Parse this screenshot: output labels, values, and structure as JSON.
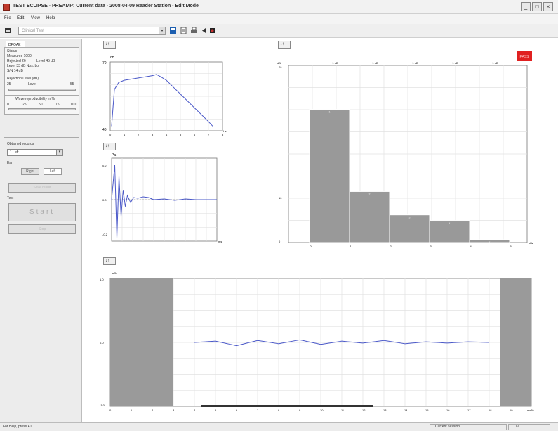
{
  "window": {
    "title": "TEST ECLIPSE - PREAMP: Current data - 2008-04-09 Reader Station - Edit Mode",
    "minimize": "_",
    "maximize": "□",
    "close": "×"
  },
  "menu": [
    "File",
    "Edit",
    "View",
    "Help"
  ],
  "toolbar": {
    "combo_value": "Clinical Test"
  },
  "left_panel": {
    "tab_label": "DPOAE",
    "status_label": "Status",
    "measured": "Measured 1000",
    "rejected": "Rejected 26",
    "level_right": "Level 45 dB",
    "noise": "Level 33 dB Nos. Lo",
    "snr": "S/N 14 dB",
    "rejection_label": "Rejection Level (dB)",
    "rejection_min": "25",
    "rejection_mid": "Level",
    "rejection_max": "55",
    "repro_label": "Wave reproducibility in %",
    "repro_ticks": [
      "0",
      "25",
      "50",
      "75",
      "100"
    ],
    "obtained_label": "Obtained records",
    "obtained_value": "1 Left",
    "ear_label": "Ear",
    "ear_right": "Right",
    "ear_left": "Left",
    "save_label": "Save result",
    "test_label": "Test",
    "start_label": "Start",
    "stop_label": "Stop"
  },
  "graph_buttons": {
    "down": "↓",
    "up": "↑"
  },
  "status": {
    "help_text": "For Help, press F1",
    "session": "Current session",
    "page": "72"
  },
  "charts": {
    "spectrum": {
      "ylabel": "dB",
      "ytop": "70",
      "ybottom": "40",
      "xlabel": "Hz",
      "x_ticks": [
        "0",
        "1",
        "2",
        "3",
        "4",
        "5",
        "6",
        "7",
        "8"
      ]
    },
    "impulse": {
      "ylabel": "Pa",
      "yticks": [
        "0.2",
        "0.0",
        "-0.2"
      ],
      "xlabel": "ms",
      "x_ticks": [
        "0",
        "1",
        "2",
        "3",
        "4",
        "5",
        "6",
        "7",
        "8",
        "9",
        "10"
      ]
    },
    "histogram": {
      "ylabel": "dB",
      "yticks": [
        "20",
        "10",
        "0"
      ],
      "xlabel": "kHz",
      "badge": "PASS",
      "top_labels": [
        "1 dB",
        "1 dB",
        "1 dB",
        "1 dB",
        "1 dB"
      ],
      "x_ticks": [
        "0",
        "1",
        "2",
        "3",
        "4",
        "5"
      ]
    },
    "waveform": {
      "ylabel": "mPa",
      "yticks": [
        "1.0",
        "0.0",
        "-1.0"
      ],
      "xlabel": "ms",
      "x_ticks": [
        "0",
        "1",
        "2",
        "3",
        "4",
        "5",
        "6",
        "7",
        "8",
        "9",
        "10",
        "11",
        "12",
        "13",
        "14",
        "15",
        "16",
        "17",
        "18",
        "19",
        "20"
      ]
    }
  },
  "chart_data": [
    {
      "type": "line",
      "ylabel": "dB",
      "xlabel": "Hz",
      "ylim": [
        40,
        70
      ],
      "xlim": [
        0,
        8
      ],
      "series": [
        {
          "x": [
            0.1,
            0.3,
            0.6,
            1.0,
            1.5,
            2.0,
            2.5,
            3.0,
            3.3,
            3.6,
            4.0,
            4.5,
            5.0,
            5.5,
            6.0,
            6.5,
            7.0,
            7.3
          ],
          "values": [
            42,
            58,
            61,
            62,
            62.5,
            63,
            63.5,
            64,
            64.5,
            63.5,
            62,
            59,
            56,
            53,
            50,
            47,
            44,
            42
          ]
        }
      ]
    },
    {
      "type": "line",
      "ylabel": "Pa",
      "xlabel": "ms",
      "ylim": [
        -0.3,
        0.3
      ],
      "xlim": [
        0,
        10
      ],
      "series": [
        {
          "x": [
            0,
            0.3,
            0.5,
            0.7,
            0.9,
            1.1,
            1.3,
            1.5,
            1.8,
            2.1,
            2.5,
            3.0,
            3.5,
            4.0,
            5.0,
            6.0,
            7.0,
            8.0,
            9.0,
            10.0
          ],
          "values": [
            0.0,
            0.25,
            -0.28,
            0.17,
            -0.12,
            0.07,
            -0.05,
            0.03,
            -0.02,
            0.015,
            0.01,
            0.02,
            0.015,
            0.0,
            0.005,
            -0.005,
            0.005,
            0.0,
            0.0,
            0.0
          ]
        }
      ]
    },
    {
      "type": "bar",
      "ylabel": "dB",
      "xlabel": "kHz",
      "ylim": [
        0,
        25
      ],
      "categories": [
        "1",
        "2",
        "3",
        "4",
        "5"
      ],
      "values": [
        18.8,
        7.2,
        3.9,
        3.1,
        0.4
      ]
    },
    {
      "type": "line",
      "ylabel": "mPa",
      "xlabel": "ms",
      "ylim": [
        -1,
        1
      ],
      "xlim": [
        0,
        20
      ],
      "series": [
        {
          "x": [
            4,
            5,
            6,
            7,
            8,
            9,
            10,
            11,
            12,
            13,
            14,
            15,
            16,
            17,
            18
          ],
          "values": [
            0.0,
            0.02,
            -0.05,
            0.03,
            -0.02,
            0.04,
            -0.03,
            0.02,
            -0.01,
            0.03,
            -0.02,
            0.01,
            -0.01,
            0.01,
            0.0
          ]
        }
      ]
    }
  ]
}
